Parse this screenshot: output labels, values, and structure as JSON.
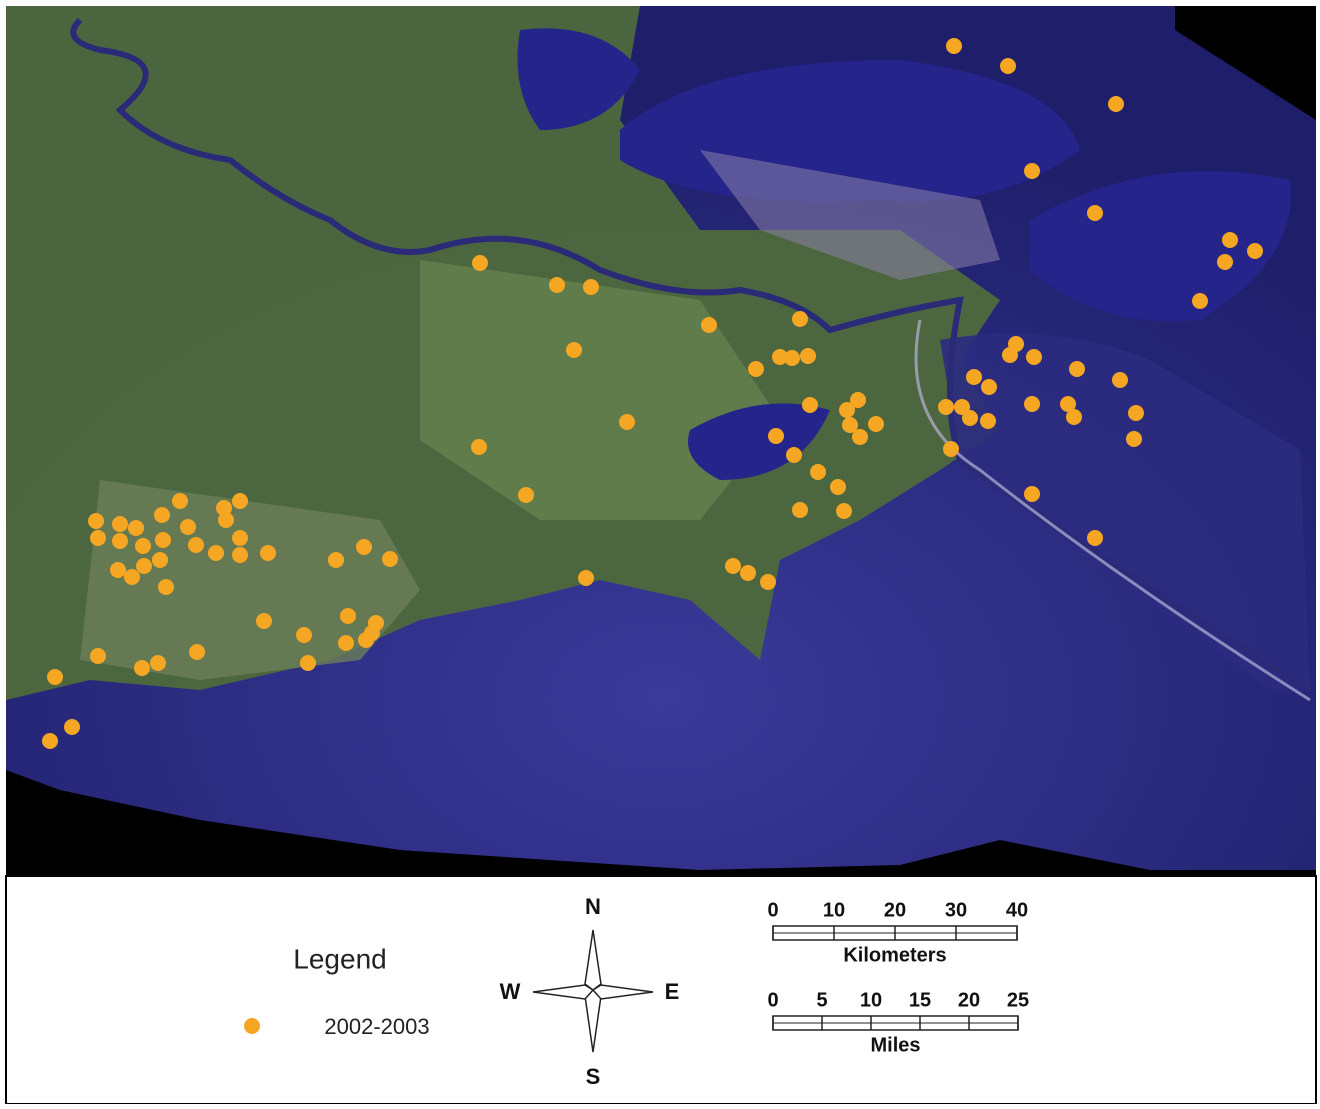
{
  "legend": {
    "title": "Legend",
    "items": [
      {
        "label": "2002-2003",
        "color": "#f5a623"
      }
    ]
  },
  "compass": {
    "north": "N",
    "south": "S",
    "east": "E",
    "west": "W"
  },
  "scale_km": {
    "ticks": [
      0,
      10,
      20,
      30,
      40
    ],
    "unit": "Kilometers"
  },
  "scale_miles": {
    "ticks": [
      0,
      5,
      10,
      15,
      20,
      25
    ],
    "unit": "Miles"
  }
}
